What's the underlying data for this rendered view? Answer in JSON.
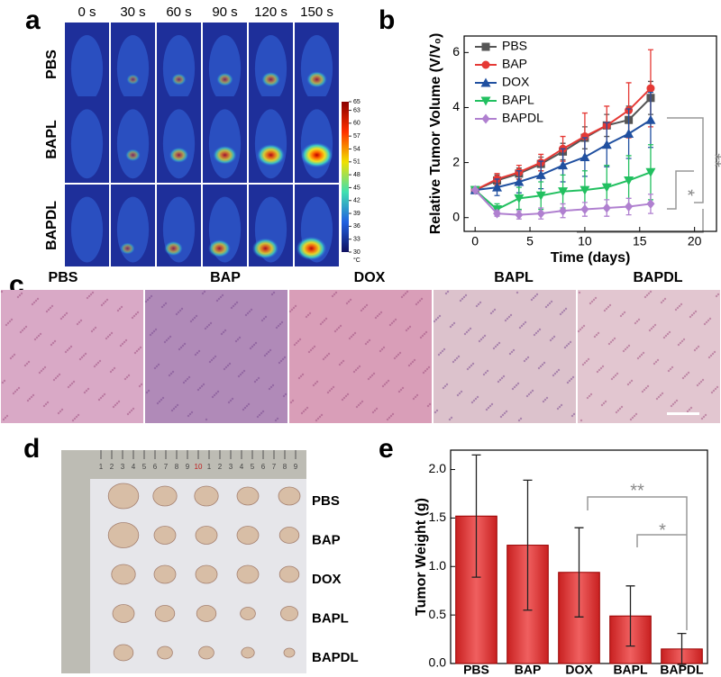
{
  "panel_labels": [
    "a",
    "b",
    "c",
    "d",
    "e"
  ],
  "thermal": {
    "times": [
      "0 s",
      "30 s",
      "60 s",
      "90 s",
      "120 s",
      "150 s"
    ],
    "groups": [
      "PBS",
      "BAPL",
      "BAPDL"
    ],
    "colorbar": {
      "ticks": [
        65,
        63,
        60,
        57,
        54,
        51,
        48,
        45,
        42,
        39,
        36,
        33,
        30
      ],
      "unit": "°C"
    }
  },
  "histology": {
    "labels": [
      "PBS",
      "BAP",
      "DOX",
      "BAPL",
      "BAPDL"
    ]
  },
  "photo": {
    "labels": [
      "PBS",
      "BAP",
      "DOX",
      "BAPL",
      "BAPDL"
    ],
    "ruler": [
      "1",
      "2",
      "3",
      "4",
      "5",
      "6",
      "7",
      "8",
      "9",
      "10",
      "1",
      "2",
      "3",
      "4",
      "5",
      "6",
      "7",
      "8",
      "9"
    ]
  },
  "chart_data": [
    {
      "type": "line",
      "x_label": "Time (days)",
      "y_label": "Relative Tumor Volume (V/V₀)",
      "x": [
        0,
        2,
        4,
        6,
        8,
        10,
        12,
        14,
        16
      ],
      "xlim": [
        -1,
        22
      ],
      "xticks": [
        0,
        5,
        10,
        15,
        20
      ],
      "ylim": [
        -0.5,
        6.6
      ],
      "yticks": [
        0,
        2,
        4,
        6
      ],
      "legend": "upper left",
      "series": [
        {
          "name": "PBS",
          "color": "#555555",
          "marker": "square",
          "values": [
            1,
            1.35,
            1.6,
            1.95,
            2.4,
            2.9,
            3.35,
            3.55,
            4.35
          ],
          "errors": [
            0.05,
            0.2,
            0.2,
            0.25,
            0.3,
            0.4,
            0.4,
            0.5,
            0.6
          ]
        },
        {
          "name": "BAP",
          "color": "#e53935",
          "marker": "circle",
          "values": [
            1,
            1.4,
            1.65,
            2.0,
            2.5,
            2.95,
            3.35,
            3.9,
            4.7
          ],
          "errors": [
            0.05,
            0.2,
            0.25,
            0.3,
            0.45,
            0.85,
            0.7,
            1.0,
            1.4
          ]
        },
        {
          "name": "DOX",
          "color": "#2050a0",
          "marker": "triangle-up",
          "values": [
            1,
            1.1,
            1.3,
            1.55,
            1.9,
            2.2,
            2.65,
            3.05,
            3.55
          ],
          "errors": [
            0.05,
            0.3,
            0.4,
            0.5,
            0.6,
            0.7,
            0.8,
            0.9,
            1.0
          ]
        },
        {
          "name": "BAPL",
          "color": "#22c060",
          "marker": "triangle-down",
          "values": [
            1,
            0.3,
            0.7,
            0.8,
            0.95,
            1.0,
            1.1,
            1.35,
            1.65
          ],
          "errors": [
            0.05,
            0.2,
            0.4,
            0.5,
            0.6,
            0.7,
            0.8,
            0.9,
            1.0
          ]
        },
        {
          "name": "BAPDL",
          "color": "#b080d0",
          "marker": "diamond",
          "values": [
            1,
            0.15,
            0.1,
            0.15,
            0.25,
            0.3,
            0.35,
            0.4,
            0.5
          ],
          "errors": [
            0.05,
            0.1,
            0.15,
            0.2,
            0.25,
            0.25,
            0.3,
            0.3,
            0.35
          ]
        }
      ],
      "annotations": [
        "**",
        "*"
      ]
    },
    {
      "type": "bar",
      "y_label": "Tumor Weight (g)",
      "categories": [
        "PBS",
        "BAP",
        "DOX",
        "BAPL",
        "BAPDL"
      ],
      "values": [
        1.52,
        1.22,
        0.94,
        0.49,
        0.15
      ],
      "errors": [
        0.63,
        0.67,
        0.46,
        0.31,
        0.16
      ],
      "color": "#d43030",
      "ylim": [
        0,
        2.2
      ],
      "yticks": [
        {
          "value": 0,
          "label": "0.0"
        },
        0.5,
        {
          "value": 1,
          "label": "1.0"
        },
        1.5,
        {
          "value": 2,
          "label": "2.0"
        }
      ],
      "annotations": [
        "**",
        "*"
      ]
    }
  ]
}
